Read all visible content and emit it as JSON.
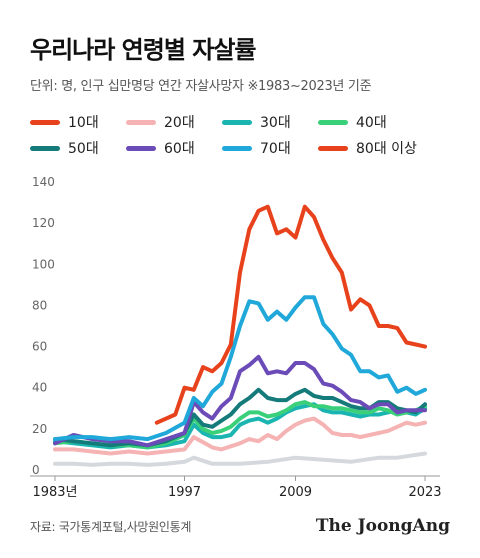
{
  "title": "우리나라 연령별 자살률",
  "subtitle": "단위: 명, 인구 십만명당 연간 자살사망자   ※1983~2023년 기준",
  "source": "자료: 국가통계포털,사망원인통계",
  "brand": "The JoongAng",
  "chart_data": {
    "type": "line",
    "title": "우리나라 연령별 자살률",
    "ylim": [
      0,
      140
    ],
    "yticks": [
      0,
      20,
      40,
      60,
      80,
      100,
      120,
      140
    ],
    "xlim": [
      1983,
      2023
    ],
    "xticks": [
      1983,
      1997,
      2009,
      2023
    ],
    "xtick_labels": [
      "1983년",
      "1997",
      "2009",
      "2023"
    ],
    "legend_placement": "top",
    "series": [
      {
        "name": "10대",
        "color": "#d5d9dd",
        "x": [
          1983,
          1985,
          1987,
          1989,
          1991,
          1993,
          1995,
          1997,
          1998,
          2000,
          2003,
          2006,
          2009,
          2012,
          2015,
          2018,
          2020,
          2023
        ],
        "values": [
          3,
          3,
          2.5,
          3,
          3,
          2.5,
          3,
          4,
          6,
          3,
          3,
          4,
          6,
          5,
          4,
          6,
          6,
          8
        ]
      },
      {
        "name": "20대",
        "color": "#f5b3b3",
        "x": [
          1983,
          1985,
          1987,
          1989,
          1991,
          1993,
          1995,
          1997,
          1998,
          2000,
          2001,
          2003,
          2004,
          2005,
          2006,
          2007,
          2008,
          2009,
          2010,
          2011,
          2012,
          2013,
          2014,
          2015,
          2016,
          2017,
          2018,
          2019,
          2020,
          2021,
          2022,
          2023
        ],
        "values": [
          10,
          10,
          9,
          8,
          9,
          8,
          9,
          10,
          16,
          11,
          10,
          13,
          15,
          14,
          17,
          15,
          19,
          22,
          24,
          25,
          22,
          18,
          17,
          17,
          16,
          17,
          18,
          19,
          21,
          23,
          22,
          23
        ]
      },
      {
        "name": "30대",
        "color": "#1ab5b0",
        "x": [
          1983,
          1985,
          1987,
          1989,
          1991,
          1993,
          1995,
          1997,
          1998,
          1999,
          2000,
          2001,
          2002,
          2003,
          2004,
          2005,
          2006,
          2007,
          2008,
          2009,
          2010,
          2011,
          2012,
          2013,
          2014,
          2015,
          2016,
          2017,
          2018,
          2019,
          2020,
          2021,
          2022,
          2023
        ],
        "values": [
          14,
          13,
          12,
          11,
          12,
          11,
          12,
          14,
          22,
          18,
          16,
          16,
          17,
          22,
          24,
          25,
          23,
          25,
          28,
          30,
          31,
          32,
          29,
          28,
          28,
          27,
          26,
          27,
          27,
          28,
          29,
          28,
          27,
          30
        ]
      },
      {
        "name": "40대",
        "color": "#3ad07a",
        "x": [
          1983,
          1985,
          1987,
          1989,
          1991,
          1993,
          1995,
          1997,
          1998,
          1999,
          2000,
          2001,
          2002,
          2003,
          2004,
          2005,
          2006,
          2007,
          2008,
          2009,
          2010,
          2011,
          2012,
          2013,
          2014,
          2015,
          2016,
          2017,
          2018,
          2019,
          2020,
          2021,
          2022,
          2023
        ],
        "values": [
          13,
          14,
          13,
          12,
          12,
          11,
          13,
          17,
          25,
          20,
          18,
          19,
          21,
          25,
          28,
          28,
          26,
          27,
          29,
          32,
          33,
          31,
          31,
          30,
          30,
          29,
          28,
          28,
          30,
          29,
          27,
          28,
          29,
          31
        ]
      },
      {
        "name": "50대",
        "color": "#157a7a",
        "x": [
          1983,
          1985,
          1987,
          1989,
          1991,
          1993,
          1995,
          1997,
          1998,
          1999,
          2000,
          2001,
          2002,
          2003,
          2004,
          2005,
          2006,
          2007,
          2008,
          2009,
          2010,
          2011,
          2012,
          2013,
          2014,
          2015,
          2016,
          2017,
          2018,
          2019,
          2020,
          2021,
          2022,
          2023
        ],
        "values": [
          15,
          14,
          13,
          12,
          13,
          12,
          14,
          18,
          27,
          22,
          21,
          24,
          27,
          32,
          35,
          39,
          35,
          34,
          34,
          37,
          39,
          36,
          35,
          35,
          33,
          31,
          30,
          30,
          33,
          33,
          30,
          29,
          28,
          32
        ]
      },
      {
        "name": "60대",
        "color": "#6b4bb8",
        "x": [
          1983,
          1985,
          1987,
          1989,
          1991,
          1993,
          1995,
          1997,
          1998,
          1999,
          2000,
          2001,
          2002,
          2003,
          2004,
          2005,
          2006,
          2007,
          2008,
          2009,
          2010,
          2011,
          2012,
          2013,
          2014,
          2015,
          2016,
          2017,
          2018,
          2019,
          2020,
          2021,
          2022,
          2023
        ],
        "values": [
          13,
          17,
          15,
          14,
          14,
          12,
          15,
          18,
          33,
          28,
          25,
          31,
          35,
          48,
          51,
          55,
          47,
          48,
          47,
          52,
          52,
          49,
          42,
          41,
          38,
          34,
          33,
          30,
          32,
          32,
          28,
          29,
          29,
          29
        ]
      },
      {
        "name": "70대",
        "color": "#1fa8d9",
        "x": [
          1983,
          1985,
          1987,
          1989,
          1991,
          1993,
          1995,
          1997,
          1998,
          1999,
          2000,
          2001,
          2002,
          2003,
          2004,
          2005,
          2006,
          2007,
          2008,
          2009,
          2010,
          2011,
          2012,
          2013,
          2014,
          2015,
          2016,
          2017,
          2018,
          2019,
          2020,
          2021,
          2022,
          2023
        ],
        "values": [
          15,
          16,
          16,
          15,
          16,
          15,
          18,
          23,
          35,
          31,
          38,
          42,
          55,
          70,
          82,
          81,
          73,
          77,
          73,
          79,
          84,
          84,
          71,
          66,
          59,
          56,
          48,
          48,
          45,
          46,
          38,
          40,
          37,
          39
        ]
      },
      {
        "name": "80대 이상",
        "color": "#e8421c",
        "x": [
          1994,
          1996,
          1997,
          1998,
          1999,
          2000,
          2001,
          2002,
          2003,
          2004,
          2005,
          2006,
          2007,
          2008,
          2009,
          2010,
          2011,
          2012,
          2013,
          2014,
          2015,
          2016,
          2017,
          2018,
          2019,
          2020,
          2021,
          2022,
          2023
        ],
        "values": [
          23,
          27,
          40,
          39,
          50,
          48,
          52,
          61,
          96,
          117,
          126,
          128,
          115,
          117,
          113,
          128,
          123,
          112,
          103,
          96,
          78,
          83,
          80,
          70,
          70,
          69,
          62,
          61,
          60
        ]
      }
    ]
  }
}
